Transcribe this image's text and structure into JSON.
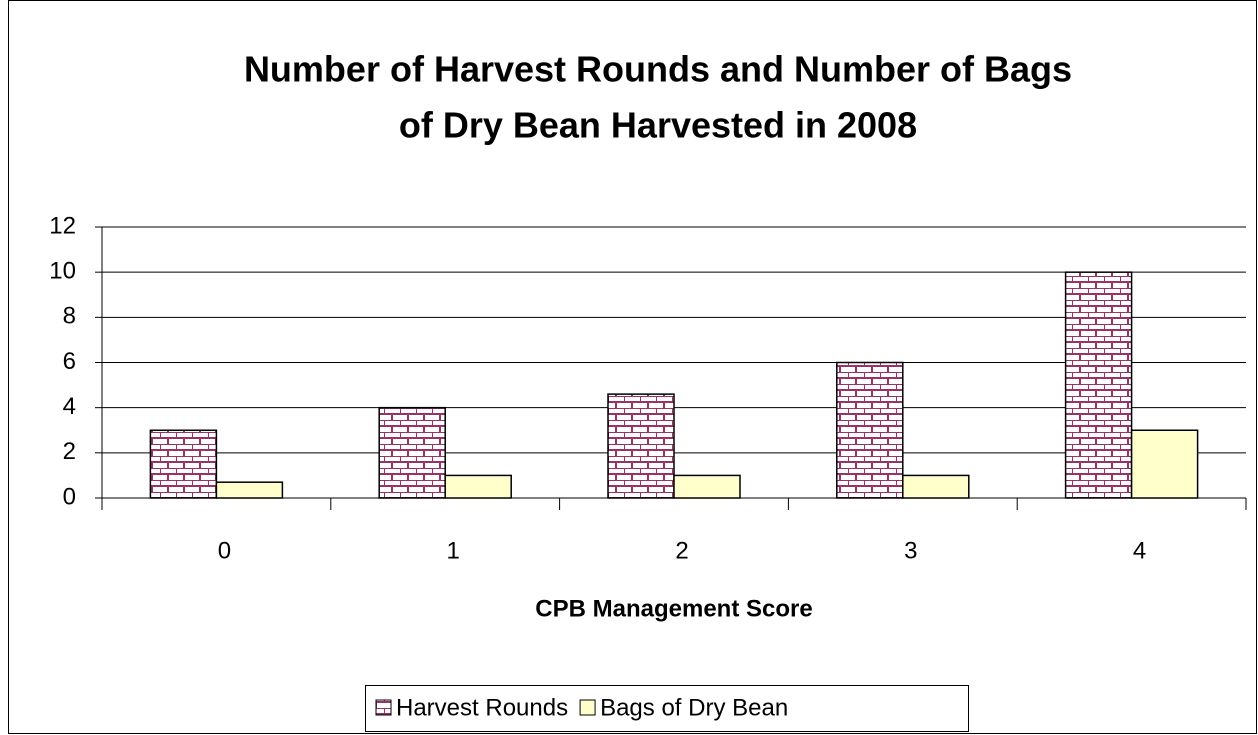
{
  "chart_data": {
    "type": "bar",
    "title": [
      "Number of Harvest Rounds and Number of Bags",
      "of Dry Bean Harvested in 2008"
    ],
    "x_label": "CPB Management Score",
    "categories": [
      "0",
      "1",
      "2",
      "3",
      "4"
    ],
    "series": [
      {
        "name": "Harvest Rounds",
        "color": "#993366",
        "pattern": "brick",
        "values": [
          3,
          4,
          4.6,
          6,
          10
        ]
      },
      {
        "name": "Bags of Dry Bean",
        "color": "#ffffcc",
        "values": [
          0.7,
          1,
          1,
          1,
          3
        ]
      }
    ],
    "ylim": [
      0,
      12
    ],
    "yticks": [
      0,
      2,
      4,
      6,
      8,
      10,
      12
    ],
    "grid": true,
    "legend": "bottom"
  }
}
